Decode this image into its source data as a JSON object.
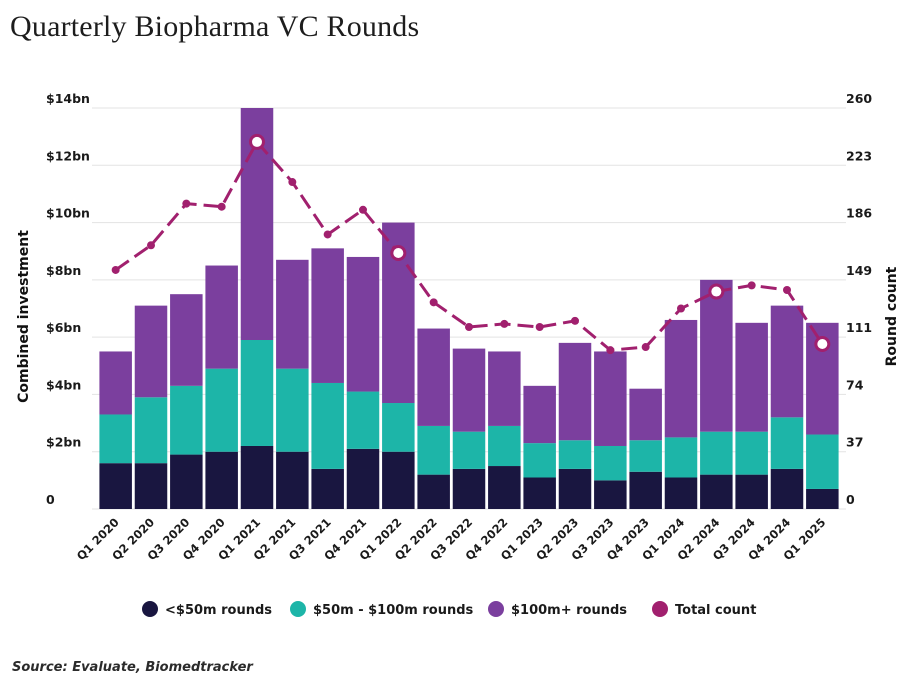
{
  "title": "Quarterly Biopharma VC Rounds",
  "source": "Source: Evaluate, Biomedtracker",
  "chart_data": {
    "type": "bar",
    "stacked": true,
    "categories": [
      "Q1 2020",
      "Q2 2020",
      "Q3 2020",
      "Q4 2020",
      "Q1 2021",
      "Q2 2021",
      "Q3 2021",
      "Q4 2021",
      "Q1 2022",
      "Q2 2022",
      "Q3 2022",
      "Q4 2022",
      "Q1 2023",
      "Q2 2023",
      "Q3 2023",
      "Q4 2023",
      "Q1 2024",
      "Q2 2024",
      "Q3 2024",
      "Q4 2024",
      "Q1 2025"
    ],
    "series": [
      {
        "name": "<$50m rounds",
        "color": "#191640",
        "values": [
          1.6,
          1.6,
          1.9,
          2.0,
          2.2,
          2.0,
          1.4,
          2.1,
          2.0,
          1.2,
          1.4,
          1.5,
          1.1,
          1.4,
          1.0,
          1.3,
          1.1,
          1.2,
          1.2,
          1.4,
          0.7
        ]
      },
      {
        "name": "$50m - $100m rounds",
        "color": "#1db5a8",
        "values": [
          1.7,
          2.3,
          2.4,
          2.9,
          3.7,
          2.9,
          3.0,
          2.0,
          1.7,
          1.7,
          1.3,
          1.4,
          1.2,
          1.0,
          1.2,
          1.1,
          1.4,
          1.5,
          1.5,
          1.8,
          1.9
        ]
      },
      {
        "name": "$100m+ rounds",
        "color": "#7b3f9e",
        "values": [
          2.2,
          3.2,
          3.2,
          3.6,
          8.1,
          3.8,
          4.7,
          4.7,
          6.3,
          3.4,
          2.9,
          2.6,
          2.0,
          3.4,
          3.3,
          1.8,
          4.1,
          5.3,
          3.8,
          3.9,
          3.9
        ]
      }
    ],
    "line": {
      "name": "Total count",
      "color": "#a1206e",
      "values": [
        155,
        171,
        198,
        196,
        238,
        212,
        178,
        194,
        166,
        134,
        118,
        120,
        118,
        122,
        103,
        105,
        130,
        141,
        145,
        142,
        107
      ],
      "highlighted": [
        4,
        8,
        17,
        20
      ]
    },
    "ylabel": "Combined investment",
    "y2label": "Round count",
    "ylim": [
      0,
      14
    ],
    "y2lim": [
      0,
      260
    ],
    "yticks": [
      "0",
      "$2bn",
      "$4bn",
      "$6bn",
      "$8bn",
      "$10bn",
      "$12bn",
      "$14bn"
    ],
    "y2ticks": [
      "0",
      "37",
      "74",
      "111",
      "149",
      "186",
      "223",
      "260"
    ],
    "legend_position": "bottom"
  }
}
